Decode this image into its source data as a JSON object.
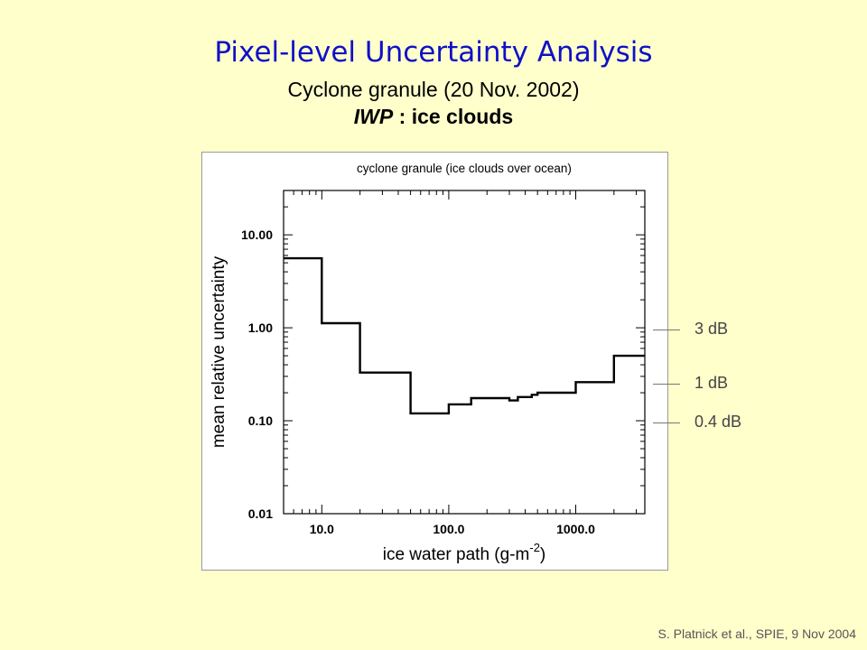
{
  "slide": {
    "title": "Pixel-level Uncertainty Analysis",
    "subtitle": "Cyclone granule (20 Nov. 2002)",
    "subtitle2_italic": "IWP",
    "subtitle2_rest": " : ice clouds",
    "credit": "S. Platnick et al., SPIE, 9 Nov  2004",
    "db_markers": [
      {
        "label": "3 dB",
        "value": 1.0
      },
      {
        "label": "1 dB",
        "value": 0.26
      },
      {
        "label": "0.4 dB",
        "value": 0.1
      }
    ],
    "colors": {
      "background": "#ffffcc",
      "title": "#1010c8"
    }
  },
  "chart_data": {
    "type": "line",
    "style": "step",
    "title": "cyclone granule (ice clouds over ocean)",
    "xlabel": "ice water path (g-m",
    "xlabel_sup": "-2",
    "xlabel_end": ")",
    "ylabel": "mean relative uncertainty",
    "xscale": "log",
    "yscale": "log",
    "xlim": [
      5,
      3500
    ],
    "ylim": [
      0.01,
      30
    ],
    "xticks": [
      {
        "value": 10,
        "label": "10.0"
      },
      {
        "value": 100,
        "label": "100.0"
      },
      {
        "value": 1000,
        "label": "1000.0"
      }
    ],
    "yticks": [
      {
        "value": 0.01,
        "label": "0.01"
      },
      {
        "value": 0.1,
        "label": "0.10"
      },
      {
        "value": 1,
        "label": "1.00"
      },
      {
        "value": 10,
        "label": "10.00"
      }
    ],
    "steps": [
      {
        "x0": 5,
        "x1": 10,
        "y": 5.6
      },
      {
        "x0": 10,
        "x1": 20,
        "y": 1.12
      },
      {
        "x0": 20,
        "x1": 50,
        "y": 0.33
      },
      {
        "x0": 50,
        "x1": 100,
        "y": 0.12
      },
      {
        "x0": 100,
        "x1": 150,
        "y": 0.15
      },
      {
        "x0": 150,
        "x1": 300,
        "y": 0.175
      },
      {
        "x0": 300,
        "x1": 350,
        "y": 0.165
      },
      {
        "x0": 350,
        "x1": 450,
        "y": 0.18
      },
      {
        "x0": 450,
        "x1": 500,
        "y": 0.19
      },
      {
        "x0": 500,
        "x1": 1000,
        "y": 0.2
      },
      {
        "x0": 1000,
        "x1": 2000,
        "y": 0.26
      },
      {
        "x0": 2000,
        "x1": 3500,
        "y": 0.5
      }
    ],
    "grid": false
  }
}
